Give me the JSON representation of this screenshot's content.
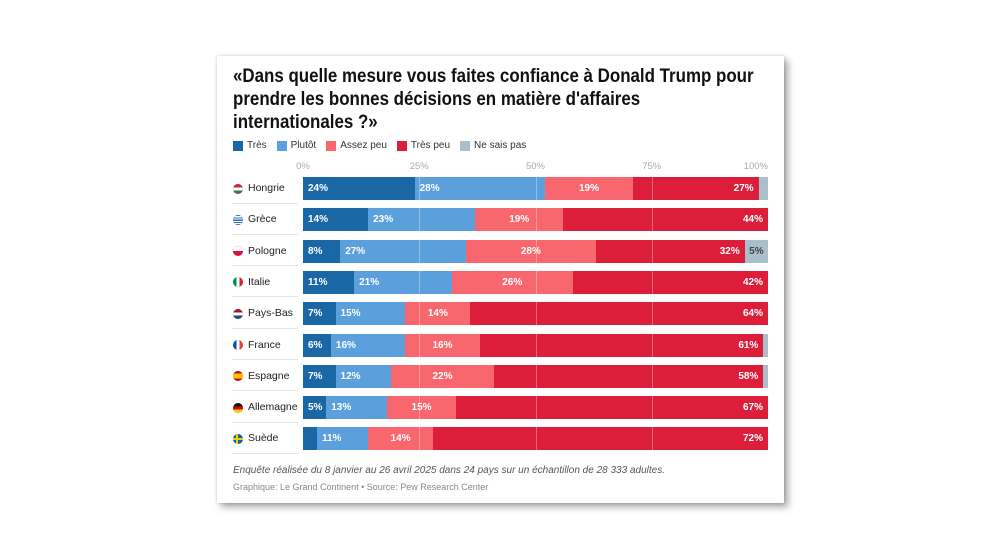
{
  "chart_data": {
    "type": "bar",
    "orientation": "horizontal",
    "stacked": true,
    "title": "«Dans quelle mesure vous faites confiance à Donald Trump pour prendre les bonnes décisions en matière d'affaires internationales ?»",
    "title_lines": [
      "«Dans quelle mesure vous faites confiance à Donald Trump pour",
      "prendre les bonnes décisions en matière d'affaires",
      "internationales ?»"
    ],
    "categories": [
      "Hongrie",
      "Grèce",
      "Pologne",
      "Italie",
      "Pays-Bas",
      "France",
      "Espagne",
      "Allemagne",
      "Suède"
    ],
    "series": [
      {
        "name": "Très",
        "color": "#1a67a6",
        "values": [
          24,
          14,
          8,
          11,
          7,
          6,
          7,
          5,
          3
        ]
      },
      {
        "name": "Plutôt",
        "color": "#5b9fdd",
        "values": [
          28,
          23,
          27,
          21,
          15,
          16,
          12,
          13,
          11
        ]
      },
      {
        "name": "Assez peu",
        "color": "#f8676d",
        "values": [
          19,
          19,
          28,
          26,
          14,
          16,
          22,
          15,
          14
        ]
      },
      {
        "name": "Très peu",
        "color": "#dc1e3a",
        "values": [
          27,
          44,
          32,
          42,
          64,
          61,
          58,
          67,
          72
        ]
      },
      {
        "name": "Ne sais pas",
        "color": "#a9bfcc",
        "values": [
          2,
          0,
          5,
          0,
          0,
          1,
          1,
          0,
          0
        ]
      }
    ],
    "xlim": [
      0,
      100
    ],
    "xticks": [
      "0%",
      "25%",
      "50%",
      "75%",
      "100%"
    ],
    "xtick_values": [
      0,
      25,
      50,
      75,
      100
    ],
    "xlabel": "",
    "ylabel": "",
    "grid": true,
    "legend": "top-left",
    "value_suffix": "%"
  },
  "flags": [
    "hungary-flag-icon",
    "greece-flag-icon",
    "poland-flag-icon",
    "italy-flag-icon",
    "netherlands-flag-icon",
    "france-flag-icon",
    "spain-flag-icon",
    "germany-flag-icon",
    "sweden-flag-icon"
  ],
  "footer": {
    "note": "Enquête réalisée du 8 janvier au 26 avril 2025 dans 24 pays sur un échantillon de 28 333 adultes.",
    "source": "Graphique: Le Grand Continent • Source: Pew Research Center"
  }
}
